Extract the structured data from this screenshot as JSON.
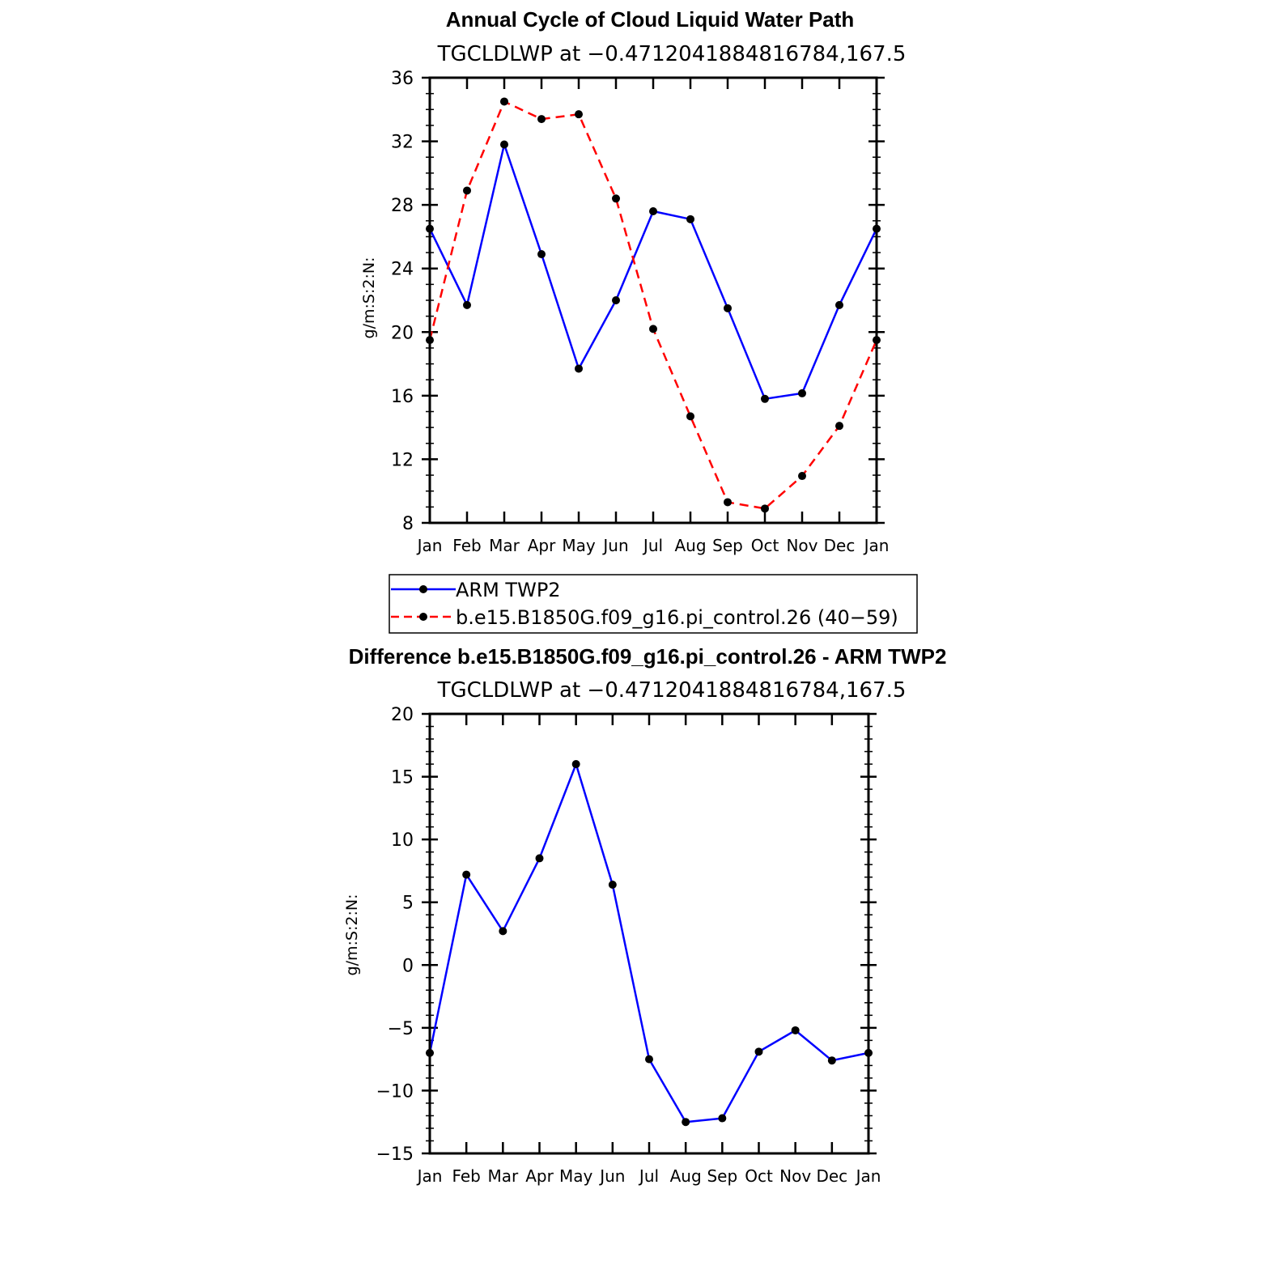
{
  "chart_data": [
    {
      "type": "line",
      "title": "Annual Cycle of Cloud Liquid Water Path",
      "subtitle": "TGCLDLWP at −0.4712041884816784,167.5",
      "xlabel": "",
      "ylabel": "g/m:S:2:N:",
      "categories": [
        "Jan",
        "Feb",
        "Mar",
        "Apr",
        "May",
        "Jun",
        "Jul",
        "Aug",
        "Sep",
        "Oct",
        "Nov",
        "Dec",
        "Jan"
      ],
      "ylim": [
        8,
        36
      ],
      "yticks": [
        "8",
        "12",
        "16",
        "20",
        "24",
        "28",
        "32",
        "36"
      ],
      "yticks_values": [
        8,
        12,
        16,
        20,
        24,
        28,
        32,
        36
      ],
      "series": [
        {
          "name": "ARM TWP2",
          "color": "#0000ff",
          "dash": "solid",
          "values": [
            26.5,
            21.7,
            31.8,
            24.9,
            17.7,
            22.0,
            27.6,
            27.1,
            21.5,
            15.8,
            16.15,
            21.7,
            26.5
          ]
        },
        {
          "name": "b.e15.B1850G.f09_g16.pi_control.26 (40−59)",
          "color": "#ff0000",
          "dash": "dashed",
          "values": [
            19.5,
            28.9,
            34.5,
            33.4,
            33.7,
            28.4,
            20.2,
            14.7,
            9.3,
            8.9,
            10.95,
            14.1,
            19.5
          ]
        }
      ],
      "legend": {
        "placement": "below"
      }
    },
    {
      "type": "line",
      "title": "Difference b.e15.B1850G.f09_g16.pi_control.26 - ARM TWP2",
      "subtitle": "TGCLDLWP at −0.4712041884816784,167.5",
      "xlabel": "",
      "ylabel": "g/m:S:2:N:",
      "categories": [
        "Jan",
        "Feb",
        "Mar",
        "Apr",
        "May",
        "Jun",
        "Jul",
        "Aug",
        "Sep",
        "Oct",
        "Nov",
        "Dec",
        "Jan"
      ],
      "ylim": [
        -15,
        20
      ],
      "yticks": [
        "−15",
        "−10",
        "−5",
        "0",
        "5",
        "10",
        "15",
        "20"
      ],
      "yticks_values": [
        -15,
        -10,
        -5,
        0,
        5,
        10,
        15,
        20
      ],
      "series": [
        {
          "name": "Difference",
          "color": "#0000ff",
          "dash": "solid",
          "values": [
            -7.0,
            7.2,
            2.7,
            8.5,
            16.0,
            6.4,
            -7.5,
            -12.5,
            -12.2,
            -6.9,
            -5.2,
            -7.6,
            -7.0
          ]
        }
      ]
    }
  ]
}
